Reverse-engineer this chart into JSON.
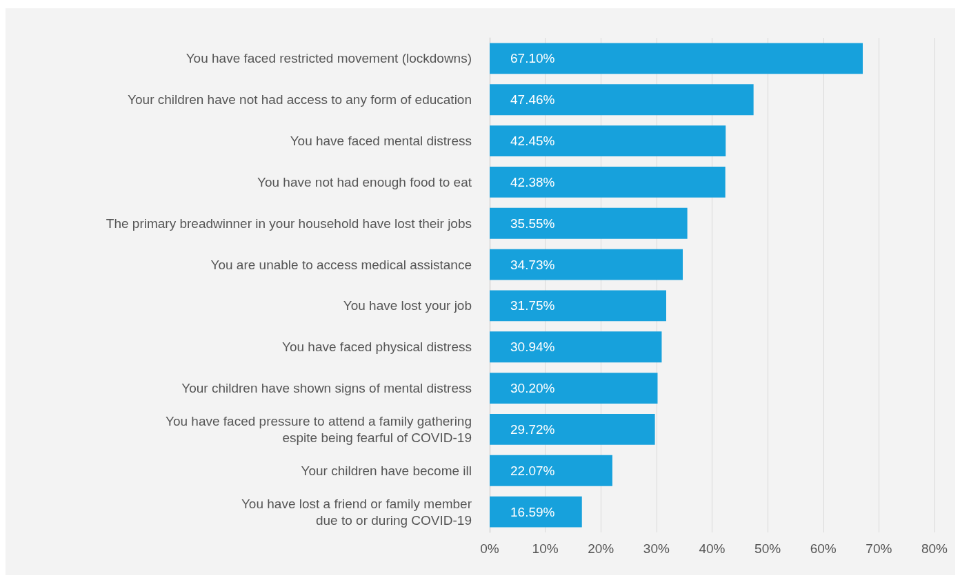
{
  "chart_data": {
    "type": "bar",
    "orientation": "horizontal",
    "categories": [
      "You have faced restricted movement (lockdowns)",
      "Your children have not had access to any form of education",
      "You have faced mental distress",
      "You have not had enough food to eat",
      "The primary breadwinner in your household have lost their jobs",
      "You are unable to access medical assistance",
      "You have lost your job",
      "You have faced physical distress",
      "Your children have shown signs of mental distress",
      "You have faced pressure to attend a family gathering\nespite being fearful of COVID-19",
      "Your children have become ill",
      "You have lost a friend or family member\ndue to or during COVID-19"
    ],
    "values": [
      67.1,
      47.46,
      42.45,
      42.38,
      35.55,
      34.73,
      31.75,
      30.94,
      30.2,
      29.72,
      22.07,
      16.59
    ],
    "value_labels": [
      "67.10%",
      "47.46%",
      "42.45%",
      "42.38%",
      "35.55%",
      "34.73%",
      "31.75%",
      "30.94%",
      "30.20%",
      "29.72%",
      "22.07%",
      "16.59%"
    ],
    "color": "#17a1dc",
    "xlim": [
      0,
      80
    ],
    "xticks": [
      {
        "value": 0,
        "label": "0%"
      },
      {
        "value": 10,
        "label": "10%"
      },
      {
        "value": 20,
        "label": "20%"
      },
      {
        "value": 30,
        "label": "30%"
      },
      {
        "value": 40,
        "label": "40%"
      },
      {
        "value": 50,
        "label": "50%"
      },
      {
        "value": 60,
        "label": "60%"
      },
      {
        "value": 70,
        "label": "70%"
      },
      {
        "value": 80,
        "label": "80%"
      }
    ],
    "grid": "x"
  }
}
